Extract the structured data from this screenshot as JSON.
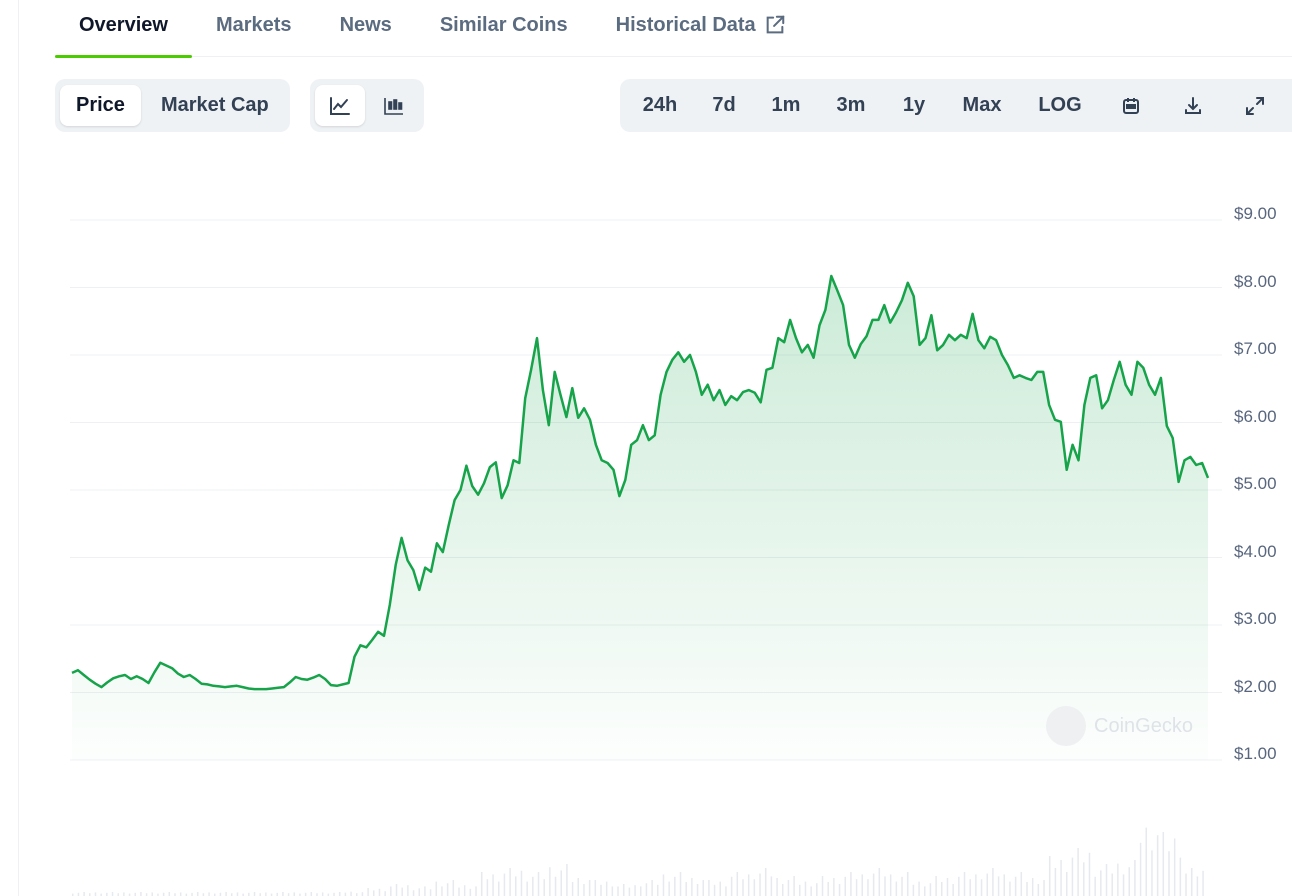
{
  "tabs": [
    {
      "label": "Overview",
      "active": true
    },
    {
      "label": "Markets"
    },
    {
      "label": "News"
    },
    {
      "label": "Similar Coins"
    },
    {
      "label": "Historical Data",
      "icon": "external-link-icon"
    }
  ],
  "metric_toggle": [
    {
      "label": "Price",
      "selected": true
    },
    {
      "label": "Market Cap"
    }
  ],
  "chart_type_toggle": [
    {
      "icon": "line-chart-icon",
      "selected": true
    },
    {
      "icon": "candlestick-icon"
    }
  ],
  "ranges": [
    "24h",
    "7d",
    "1m",
    "3m",
    "1y",
    "Max",
    "LOG"
  ],
  "range_icons": [
    "calendar-icon",
    "download-icon",
    "fullscreen-icon"
  ],
  "watermark": "CoinGecko",
  "colors": {
    "line": "#16a34a",
    "accent_tab": "#4bcc00"
  },
  "chart_data": {
    "type": "area",
    "ylim": [
      1,
      9
    ],
    "yticks": [
      "$9.00",
      "$8.00",
      "$7.00",
      "$6.00",
      "$5.00",
      "$4.00",
      "$3.00",
      "$2.00",
      "$1.00"
    ],
    "ytick_values": [
      9,
      8,
      7,
      6,
      5,
      4,
      3,
      2,
      1
    ],
    "grid": true,
    "values": [
      2.29,
      2.33,
      2.26,
      2.19,
      2.13,
      2.08,
      2.15,
      2.21,
      2.24,
      2.26,
      2.2,
      2.24,
      2.2,
      2.14,
      2.3,
      2.44,
      2.4,
      2.36,
      2.28,
      2.23,
      2.26,
      2.2,
      2.13,
      2.12,
      2.1,
      2.09,
      2.08,
      2.09,
      2.1,
      2.08,
      2.06,
      2.05,
      2.05,
      2.05,
      2.06,
      2.07,
      2.08,
      2.15,
      2.23,
      2.2,
      2.19,
      2.22,
      2.26,
      2.2,
      2.11,
      2.1,
      2.12,
      2.14,
      2.53,
      2.7,
      2.67,
      2.78,
      2.9,
      2.84,
      3.3,
      3.89,
      4.29,
      3.96,
      3.81,
      3.52,
      3.85,
      3.79,
      4.21,
      4.08,
      4.48,
      4.85,
      5.0,
      5.36,
      5.06,
      4.93,
      5.1,
      5.34,
      5.41,
      4.88,
      5.07,
      5.44,
      5.4,
      6.36,
      6.78,
      7.25,
      6.48,
      5.96,
      6.75,
      6.41,
      6.08,
      6.51,
      6.07,
      6.21,
      6.04,
      5.67,
      5.44,
      5.4,
      5.3,
      4.91,
      5.15,
      5.67,
      5.74,
      5.96,
      5.74,
      5.81,
      6.41,
      6.75,
      6.93,
      7.04,
      6.9,
      7.0,
      6.75,
      6.41,
      6.56,
      6.33,
      6.48,
      6.26,
      6.39,
      6.33,
      6.45,
      6.48,
      6.44,
      6.3,
      6.78,
      6.81,
      7.25,
      7.19,
      7.52,
      7.25,
      7.04,
      7.15,
      6.96,
      7.44,
      7.67,
      8.17,
      7.96,
      7.74,
      7.15,
      6.96,
      7.16,
      7.28,
      7.52,
      7.52,
      7.74,
      7.48,
      7.63,
      7.81,
      8.07,
      7.87,
      7.15,
      7.25,
      7.59,
      7.07,
      7.15,
      7.3,
      7.22,
      7.3,
      7.25,
      7.61,
      7.22,
      7.1,
      7.27,
      7.22,
      7.0,
      6.85,
      6.66,
      6.7,
      6.66,
      6.63,
      6.75,
      6.75,
      6.26,
      6.04,
      6.01,
      5.3,
      5.67,
      5.44,
      6.26,
      6.66,
      6.7,
      6.21,
      6.33,
      6.63,
      6.9,
      6.56,
      6.41,
      6.9,
      6.81,
      6.56,
      6.41,
      6.66,
      5.95,
      5.77,
      5.12,
      5.44,
      5.49,
      5.37,
      5.4,
      5.18
    ],
    "volume_relative": [
      0.05,
      0.05,
      0.05,
      0.05,
      0.05,
      0.05,
      0.05,
      0.05,
      0.05,
      0.05,
      0.05,
      0.05,
      0.06,
      0.1,
      0.15,
      0.12,
      0.2,
      0.15,
      0.3,
      0.35,
      0.3,
      0.4,
      0.25,
      0.2,
      0.15,
      0.2,
      0.3,
      0.25,
      0.2,
      0.3,
      0.35,
      0.25,
      0.2,
      0.25,
      0.3,
      0.35,
      0.3,
      0.2,
      0.25,
      0.3,
      0.35,
      0.3,
      0.25,
      0.5,
      0.6,
      0.4,
      0.45,
      0.95,
      0.8,
      0.35
    ]
  }
}
